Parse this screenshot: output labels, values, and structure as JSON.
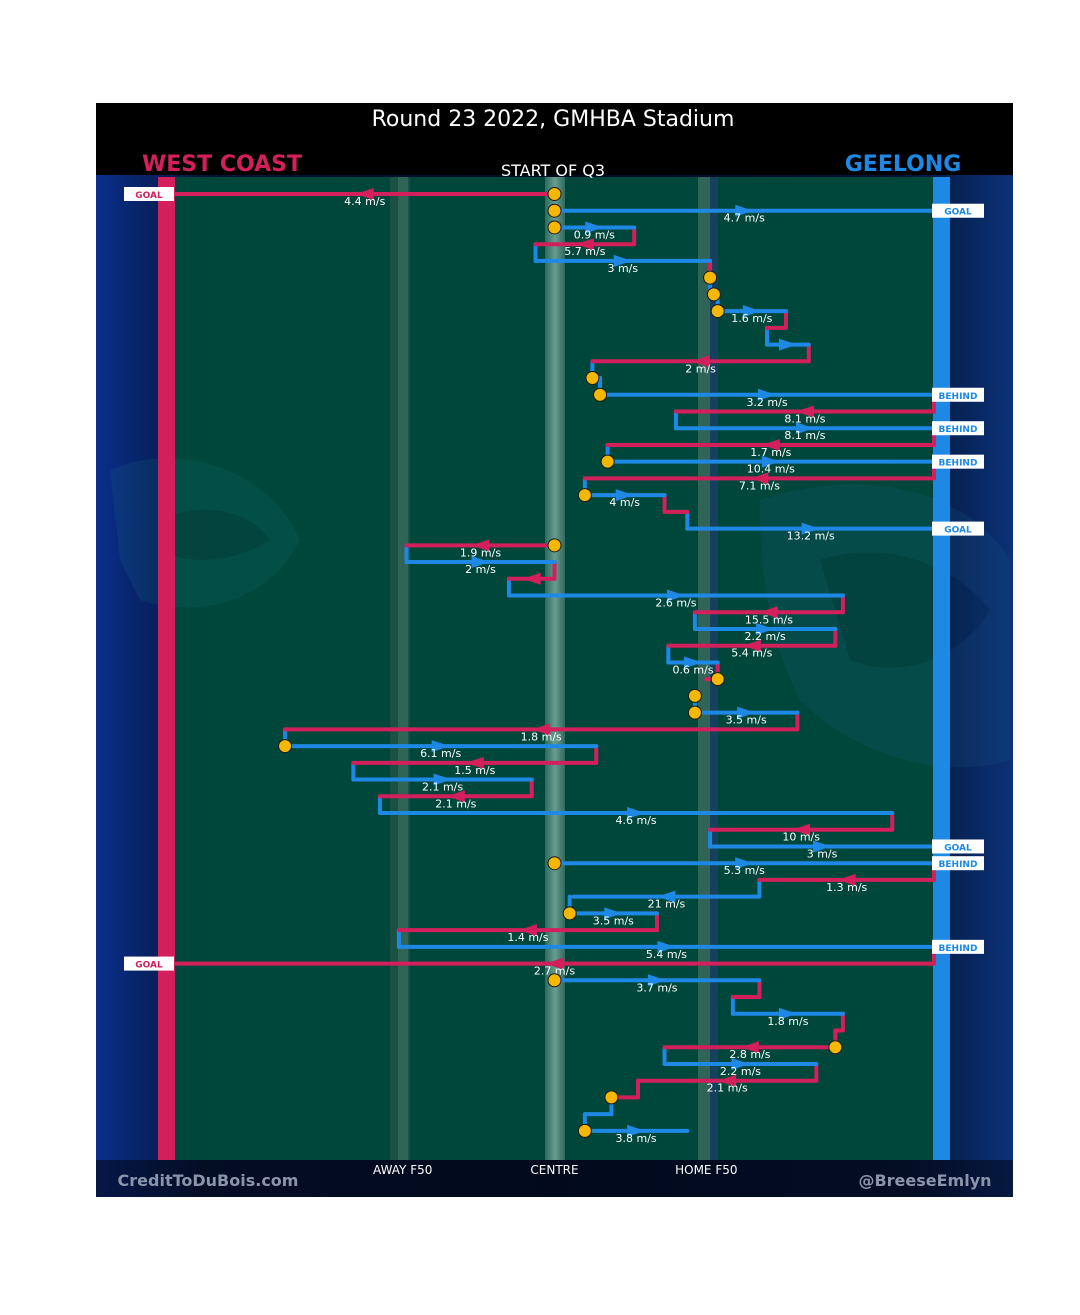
{
  "title": "Round 23 2022, GMHBA Stadium",
  "subtitle": "START OF Q3",
  "away_team": "WEST COAST",
  "home_team": "GEELONG",
  "credit_left": "CreditToDuBois.com",
  "credit_right": "@BreeseEmlyn",
  "colors": {
    "west_coast": "#d31f5c",
    "geelong": "#1e88e5",
    "field": "#00473b",
    "stoppage_fill": "#f5b700",
    "background": "#03122a"
  },
  "chart_data": {
    "type": "chain-flow",
    "x_axis": {
      "range": [
        0,
        100
      ],
      "ticks": [
        {
          "label": "AWAY F50",
          "value": 30
        },
        {
          "label": "CENTRE",
          "value": 50
        },
        {
          "label": "HOME F50",
          "value": 70
        }
      ]
    },
    "outcome_labels": [
      {
        "label": "GOAL",
        "team": "west_coast",
        "step": 0
      },
      {
        "label": "GOAL",
        "team": "geelong",
        "step": 1
      },
      {
        "label": "BEHIND",
        "team": "geelong",
        "step": 12
      },
      {
        "label": "BEHIND",
        "team": "geelong",
        "step": 14
      },
      {
        "label": "BEHIND",
        "team": "geelong",
        "step": 16
      },
      {
        "label": "GOAL",
        "team": "geelong",
        "step": 20
      },
      {
        "label": "GOAL",
        "team": "geelong",
        "step": 39
      },
      {
        "label": "BEHIND",
        "team": "geelong",
        "step": 40
      },
      {
        "label": "BEHIND",
        "team": "geelong",
        "step": 45
      },
      {
        "label": "GOAL",
        "team": "west_coast",
        "step": 46
      }
    ],
    "segments": [
      {
        "team": "west_coast",
        "from": 50.0,
        "to": 0.0,
        "step": 0,
        "label": "4.4 m/s"
      },
      {
        "team": "geelong",
        "from": 50.0,
        "to": 100.0,
        "step": 1,
        "label": "4.7 m/s"
      },
      {
        "team": "geelong",
        "from": 50.0,
        "to": 60.5,
        "step": 2,
        "label": "0.9 m/s"
      },
      {
        "team": "west_coast",
        "from": 60.5,
        "to": 47.5,
        "step": 3,
        "label": "5.7 m/s"
      },
      {
        "team": "geelong",
        "from": 47.5,
        "to": 70.5,
        "step": 4,
        "label": "3 m/s"
      },
      {
        "team": "west_coast",
        "from": 70.5,
        "to": 70.5,
        "step": 5,
        "label": ""
      },
      {
        "team": "geelong",
        "from": 70.5,
        "to": 71.0,
        "step": 6,
        "label": ""
      },
      {
        "team": "geelong",
        "from": 71.5,
        "to": 80.5,
        "step": 7,
        "label": "1.6 m/s"
      },
      {
        "team": "west_coast",
        "from": 80.5,
        "to": 78.0,
        "step": 8,
        "label": ""
      },
      {
        "team": "geelong",
        "from": 78.0,
        "to": 83.5,
        "step": 9,
        "label": ""
      },
      {
        "team": "west_coast",
        "from": 83.5,
        "to": 55.0,
        "step": 10,
        "label": "2 m/s"
      },
      {
        "team": "geelong",
        "from": 55.0,
        "to": 56.0,
        "step": 11,
        "label": ""
      },
      {
        "team": "geelong",
        "from": 56.0,
        "to": 100.0,
        "step": 12,
        "label": "3.2 m/s"
      },
      {
        "team": "west_coast",
        "from": 100.0,
        "to": 66.0,
        "step": 13,
        "label": "8.1 m/s"
      },
      {
        "team": "geelong",
        "from": 66.0,
        "to": 100.0,
        "step": 14,
        "label": "8.1 m/s"
      },
      {
        "team": "west_coast",
        "from": 100.0,
        "to": 57.0,
        "step": 15,
        "label": "1.7 m/s"
      },
      {
        "team": "geelong",
        "from": 57.0,
        "to": 100.0,
        "step": 16,
        "label": "10.4 m/s"
      },
      {
        "team": "west_coast",
        "from": 100.0,
        "to": 54.0,
        "step": 17,
        "label": "7.1 m/s"
      },
      {
        "team": "geelong",
        "from": 54.0,
        "to": 64.5,
        "step": 18,
        "label": "4 m/s"
      },
      {
        "team": "west_coast",
        "from": 64.5,
        "to": 67.5,
        "step": 19,
        "label": ""
      },
      {
        "team": "geelong",
        "from": 67.5,
        "to": 100.0,
        "step": 20,
        "label": "13.2 m/s"
      },
      {
        "team": "west_coast",
        "from": 50.0,
        "to": 30.5,
        "step": 21,
        "label": "1.9 m/s"
      },
      {
        "team": "geelong",
        "from": 30.5,
        "to": 50.0,
        "step": 22,
        "label": "2 m/s"
      },
      {
        "team": "west_coast",
        "from": 50.0,
        "to": 44.0,
        "step": 23,
        "label": ""
      },
      {
        "team": "geelong",
        "from": 44.0,
        "to": 88.0,
        "step": 24,
        "label": "2.6 m/s"
      },
      {
        "team": "west_coast",
        "from": 88.0,
        "to": 68.5,
        "step": 25,
        "label": "15.5 m/s"
      },
      {
        "team": "geelong",
        "from": 68.5,
        "to": 87.0,
        "step": 26,
        "label": "2.2 m/s"
      },
      {
        "team": "west_coast",
        "from": 87.0,
        "to": 65.0,
        "step": 27,
        "label": "5.4 m/s"
      },
      {
        "team": "geelong",
        "from": 65.0,
        "to": 71.5,
        "step": 28,
        "label": "0.6 m/s"
      },
      {
        "team": "west_coast",
        "from": 71.5,
        "to": 70.0,
        "step": 29,
        "label": ""
      },
      {
        "team": "geelong",
        "from": 68.5,
        "to": 68.5,
        "step": 30,
        "label": ""
      },
      {
        "team": "geelong",
        "from": 68.5,
        "to": 82.0,
        "step": 31,
        "label": "3.5 m/s"
      },
      {
        "team": "west_coast",
        "from": 82.0,
        "to": 14.5,
        "step": 32,
        "label": "1.8 m/s"
      },
      {
        "team": "geelong",
        "from": 14.5,
        "to": 55.5,
        "step": 33,
        "label": "6.1 m/s"
      },
      {
        "team": "west_coast",
        "from": 55.5,
        "to": 23.5,
        "step": 34,
        "label": "1.5 m/s"
      },
      {
        "team": "geelong",
        "from": 23.5,
        "to": 47.0,
        "step": 35,
        "label": "2.1 m/s"
      },
      {
        "team": "west_coast",
        "from": 47.0,
        "to": 27.0,
        "step": 36,
        "label": "2.1 m/s"
      },
      {
        "team": "geelong",
        "from": 27.0,
        "to": 94.5,
        "step": 37,
        "label": "4.6 m/s"
      },
      {
        "team": "west_coast",
        "from": 94.5,
        "to": 70.5,
        "step": 38,
        "label": "10 m/s"
      },
      {
        "team": "geelong",
        "from": 70.5,
        "to": 100.0,
        "step": 39,
        "label": "3 m/s"
      },
      {
        "team": "geelong",
        "from": 50.0,
        "to": 100.0,
        "step": 40,
        "label": "5.3 m/s"
      },
      {
        "team": "west_coast",
        "from": 100.0,
        "to": 77.0,
        "step": 41,
        "label": "1.3 m/s"
      },
      {
        "team": "geelong",
        "from": 77.0,
        "to": 52.5,
        "step": 42,
        "label": "21 m/s"
      },
      {
        "team": "geelong",
        "from": 52.0,
        "to": 63.5,
        "step": 43,
        "label": "3.5 m/s"
      },
      {
        "team": "west_coast",
        "from": 63.5,
        "to": 29.5,
        "step": 44,
        "label": "1.4 m/s"
      },
      {
        "team": "geelong",
        "from": 29.5,
        "to": 100.0,
        "step": 45,
        "label": "5.4 m/s"
      },
      {
        "team": "west_coast",
        "from": 100.0,
        "to": 0.0,
        "step": 46,
        "label": "2.7 m/s"
      },
      {
        "team": "geelong",
        "from": 50.0,
        "to": 77.0,
        "step": 47,
        "label": "3.7 m/s"
      },
      {
        "team": "west_coast",
        "from": 77.0,
        "to": 73.5,
        "step": 48,
        "label": ""
      },
      {
        "team": "geelong",
        "from": 73.5,
        "to": 88.0,
        "step": 49,
        "label": "1.8 m/s"
      },
      {
        "team": "west_coast",
        "from": 88.0,
        "to": 87.0,
        "step": 50,
        "label": ""
      },
      {
        "team": "west_coast",
        "from": 87.0,
        "to": 64.5,
        "step": 51,
        "label": "2.8 m/s"
      },
      {
        "team": "geelong",
        "from": 64.5,
        "to": 84.5,
        "step": 52,
        "label": "2.2 m/s"
      },
      {
        "team": "west_coast",
        "from": 84.5,
        "to": 61.0,
        "step": 53,
        "label": "2.1 m/s"
      },
      {
        "team": "west_coast",
        "from": 61.0,
        "to": 57.5,
        "step": 54,
        "label": ""
      },
      {
        "team": "geelong",
        "from": 57.5,
        "to": 54.0,
        "step": 55,
        "label": ""
      },
      {
        "team": "geelong",
        "from": 54.0,
        "to": 67.5,
        "step": 56,
        "label": "3.8 m/s"
      }
    ],
    "stoppages": [
      {
        "value": 50.0,
        "step": 0
      },
      {
        "value": 50.0,
        "step": 1
      },
      {
        "value": 50.0,
        "step": 2
      },
      {
        "value": 70.5,
        "step": 5
      },
      {
        "value": 71.0,
        "step": 6
      },
      {
        "value": 71.5,
        "step": 7
      },
      {
        "value": 55.0,
        "step": 11
      },
      {
        "value": 56.0,
        "step": 12
      },
      {
        "value": 57.0,
        "step": 16
      },
      {
        "value": 54.0,
        "step": 18
      },
      {
        "value": 50.0,
        "step": 21
      },
      {
        "value": 71.5,
        "step": 29
      },
      {
        "value": 68.5,
        "step": 30
      },
      {
        "value": 68.5,
        "step": 31
      },
      {
        "value": 14.5,
        "step": 33
      },
      {
        "value": 50.0,
        "step": 40
      },
      {
        "value": 52.0,
        "step": 43
      },
      {
        "value": 50.0,
        "step": 47
      },
      {
        "value": 87.0,
        "step": 51
      },
      {
        "value": 57.5,
        "step": 54
      },
      {
        "value": 54.0,
        "step": 56
      }
    ]
  }
}
